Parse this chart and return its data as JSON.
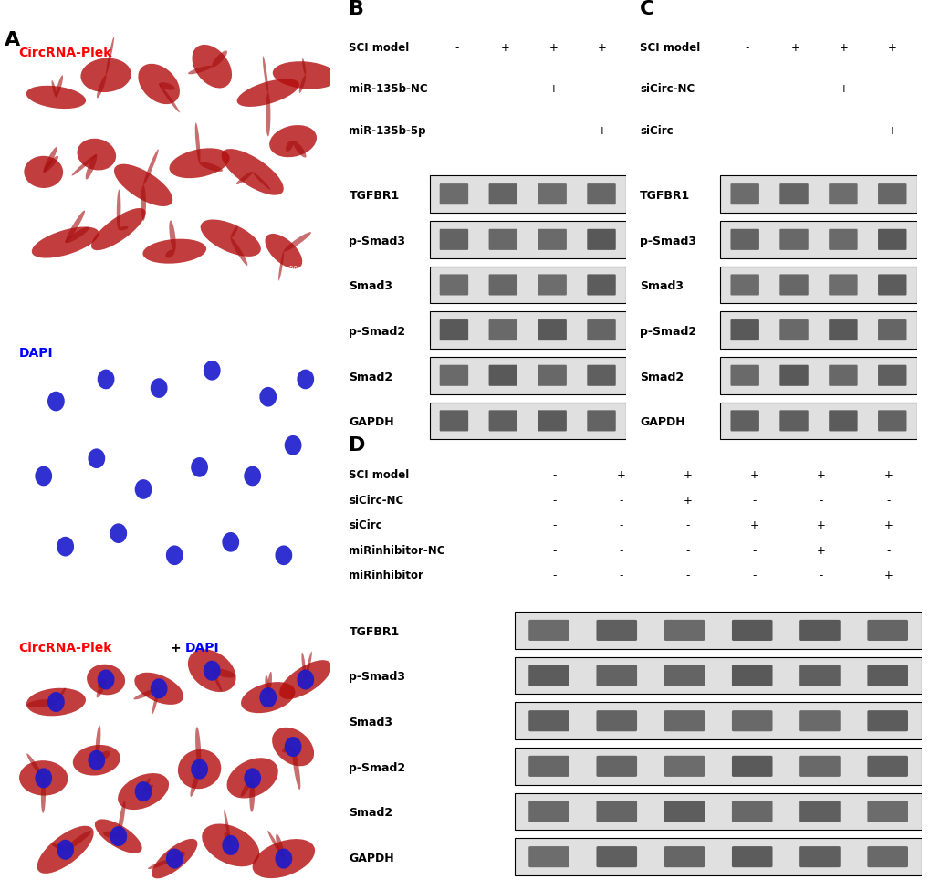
{
  "panel_A_label": "A",
  "panel_B_label": "B",
  "panel_C_label": "C",
  "panel_D_label": "D",
  "circRNA_label": "CircRNA-Plek",
  "dapi_label": "DAPI",
  "merge_label": "CircRNA-Plek+DAPI",
  "circRNA_label_color": "#FF0000",
  "dapi_label_color": "#0000FF",
  "merge_label_red": "CircRNA-Plek",
  "merge_label_plus": "+",
  "merge_label_blue": "DAPI",
  "panel_label_fontsize": 16,
  "row_label_fontsize": 9,
  "band_label_fontsize": 9,
  "condition_fontsize": 8.5,
  "B_row_labels": [
    "SCI model",
    "miR-135b-NC",
    "miR-135b-5p"
  ],
  "B_col_signs": [
    [
      "-",
      "+",
      "+",
      "+"
    ],
    [
      "-",
      "-",
      "+",
      "-"
    ],
    [
      "-",
      "-",
      "-",
      "+"
    ]
  ],
  "B_band_labels": [
    "TGFBR1",
    "p-Smad3",
    "Smad3",
    "p-Smad2",
    "Smad2",
    "GAPDH"
  ],
  "C_row_labels": [
    "SCI model",
    "siCirc-NC",
    "siCirc"
  ],
  "C_col_signs": [
    [
      "-",
      "+",
      "+",
      "+"
    ],
    [
      "-",
      "-",
      "+",
      "-"
    ],
    [
      "-",
      "-",
      "-",
      "+"
    ]
  ],
  "C_band_labels": [
    "TGFBR1",
    "p-Smad3",
    "Smad3",
    "p-Smad2",
    "Smad2",
    "GAPDH"
  ],
  "D_row_labels": [
    "SCI model",
    "siCirc-NC",
    "siCirc",
    "miRinhibitor-NC",
    "miRinhibitor"
  ],
  "D_col_signs": [
    [
      "-",
      "+",
      "+",
      "+",
      "+",
      "+"
    ],
    [
      "-",
      "-",
      "+",
      "-",
      "-",
      "-"
    ],
    [
      "-",
      "-",
      "-",
      "+",
      "+",
      "+"
    ],
    [
      "-",
      "-",
      "-",
      "-",
      "+",
      "-"
    ],
    [
      "-",
      "-",
      "-",
      "-",
      "-",
      "+"
    ]
  ],
  "D_band_labels": [
    "TGFBR1",
    "p-Smad3",
    "Smad3",
    "p-Smad2",
    "Smad2",
    "GAPDH"
  ],
  "bg_color": "#FFFFFF",
  "band_bg_color": "#E8E8E8",
  "band_border_color": "#000000"
}
